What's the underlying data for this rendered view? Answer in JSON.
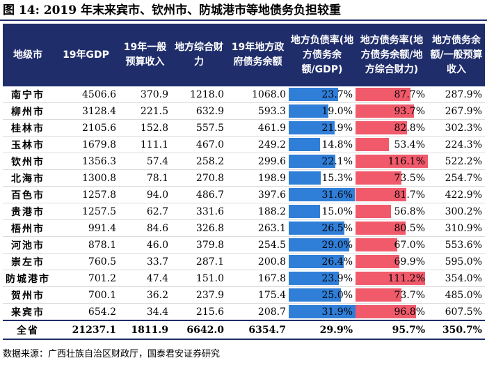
{
  "title": "图 14:  2019 年末来宾市、钦州市、防城港市等地债务负担较重",
  "headers": [
    "地级市",
    "19年GDP",
    "19年一般预算收入",
    "地方综合财力",
    "19年地方政府债务余额",
    "地方负债率(地方债务余额/GDP)",
    "地方债务率(地方债务余额/地方综合财力)",
    "地方债务余额/一般预算收入"
  ],
  "rows": [
    {
      "city": "南宁市",
      "gdp": "4506.6",
      "budget": "370.9",
      "fiscal": "1218.0",
      "debt": "1068.0",
      "ratio_gdp": "23.7%",
      "ratio_fiscal": "87.7%",
      "ratio_budget": "287.9%",
      "rg": 23.7,
      "rf": 87.7
    },
    {
      "city": "柳州市",
      "gdp": "3128.4",
      "budget": "221.5",
      "fiscal": "632.9",
      "debt": "593.3",
      "ratio_gdp": "19.0%",
      "ratio_fiscal": "93.7%",
      "ratio_budget": "267.9%",
      "rg": 19.0,
      "rf": 93.7
    },
    {
      "city": "桂林市",
      "gdp": "2105.6",
      "budget": "152.8",
      "fiscal": "557.5",
      "debt": "461.9",
      "ratio_gdp": "21.9%",
      "ratio_fiscal": "82.8%",
      "ratio_budget": "302.3%",
      "rg": 21.9,
      "rf": 82.8
    },
    {
      "city": "玉林市",
      "gdp": "1679.8",
      "budget": "111.1",
      "fiscal": "467.0",
      "debt": "249.2",
      "ratio_gdp": "14.8%",
      "ratio_fiscal": "53.4%",
      "ratio_budget": "224.3%",
      "rg": 14.8,
      "rf": 53.4
    },
    {
      "city": "钦州市",
      "gdp": "1356.3",
      "budget": "57.4",
      "fiscal": "258.2",
      "debt": "299.6",
      "ratio_gdp": "22.1%",
      "ratio_fiscal": "116.1%",
      "ratio_budget": "522.2%",
      "rg": 22.1,
      "rf": 116.1
    },
    {
      "city": "北海市",
      "gdp": "1300.8",
      "budget": "78.1",
      "fiscal": "270.8",
      "debt": "198.9",
      "ratio_gdp": "15.3%",
      "ratio_fiscal": "73.5%",
      "ratio_budget": "254.7%",
      "rg": 15.3,
      "rf": 73.5
    },
    {
      "city": "百色市",
      "gdp": "1257.8",
      "budget": "94.0",
      "fiscal": "486.7",
      "debt": "397.6",
      "ratio_gdp": "31.6%",
      "ratio_fiscal": "81.7%",
      "ratio_budget": "422.9%",
      "rg": 31.6,
      "rf": 81.7
    },
    {
      "city": "贵港市",
      "gdp": "1257.5",
      "budget": "62.7",
      "fiscal": "331.6",
      "debt": "188.2",
      "ratio_gdp": "15.0%",
      "ratio_fiscal": "56.8%",
      "ratio_budget": "300.2%",
      "rg": 15.0,
      "rf": 56.8
    },
    {
      "city": "梧州市",
      "gdp": "991.4",
      "budget": "84.6",
      "fiscal": "326.8",
      "debt": "263.1",
      "ratio_gdp": "26.5%",
      "ratio_fiscal": "80.5%",
      "ratio_budget": "310.9%",
      "rg": 26.5,
      "rf": 80.5
    },
    {
      "city": "河池市",
      "gdp": "878.1",
      "budget": "46.0",
      "fiscal": "379.8",
      "debt": "254.5",
      "ratio_gdp": "29.0%",
      "ratio_fiscal": "67.0%",
      "ratio_budget": "553.6%",
      "rg": 29.0,
      "rf": 67.0
    },
    {
      "city": "崇左市",
      "gdp": "760.5",
      "budget": "33.7",
      "fiscal": "287.1",
      "debt": "200.8",
      "ratio_gdp": "26.4%",
      "ratio_fiscal": "69.9%",
      "ratio_budget": "595.0%",
      "rg": 26.4,
      "rf": 69.9
    },
    {
      "city": "防城港市",
      "gdp": "701.2",
      "budget": "47.4",
      "fiscal": "151.0",
      "debt": "167.8",
      "ratio_gdp": "23.9%",
      "ratio_fiscal": "111.2%",
      "ratio_budget": "354.0%",
      "rg": 23.9,
      "rf": 111.2
    },
    {
      "city": "贺州市",
      "gdp": "700.1",
      "budget": "36.2",
      "fiscal": "237.9",
      "debt": "175.4",
      "ratio_gdp": "25.0%",
      "ratio_fiscal": "73.7%",
      "ratio_budget": "485.0%",
      "rg": 25.0,
      "rf": 73.7
    },
    {
      "city": "来宾市",
      "gdp": "654.2",
      "budget": "34.4",
      "fiscal": "215.6",
      "debt": "208.7",
      "ratio_gdp": "31.9%",
      "ratio_fiscal": "96.8%",
      "ratio_budget": "607.5%",
      "rg": 31.9,
      "rf": 96.8
    }
  ],
  "total": {
    "city": "全省",
    "gdp": "21237.1",
    "budget": "1811.9",
    "fiscal": "6642.0",
    "debt": "6354.7",
    "ratio_gdp": "29.9%",
    "ratio_fiscal": "95.7%",
    "ratio_budget": "350.7%"
  },
  "bar_scale": {
    "ratio_gdp_max": 31.9,
    "ratio_fiscal_max": 116.1
  },
  "colors": {
    "header": "#1f2d6b",
    "bar_gdp": "#2f7ed8",
    "bar_fiscal": "#f05a6b"
  },
  "source": "数据来源：广西壮族自治区财政厅，国泰君安证券研究"
}
